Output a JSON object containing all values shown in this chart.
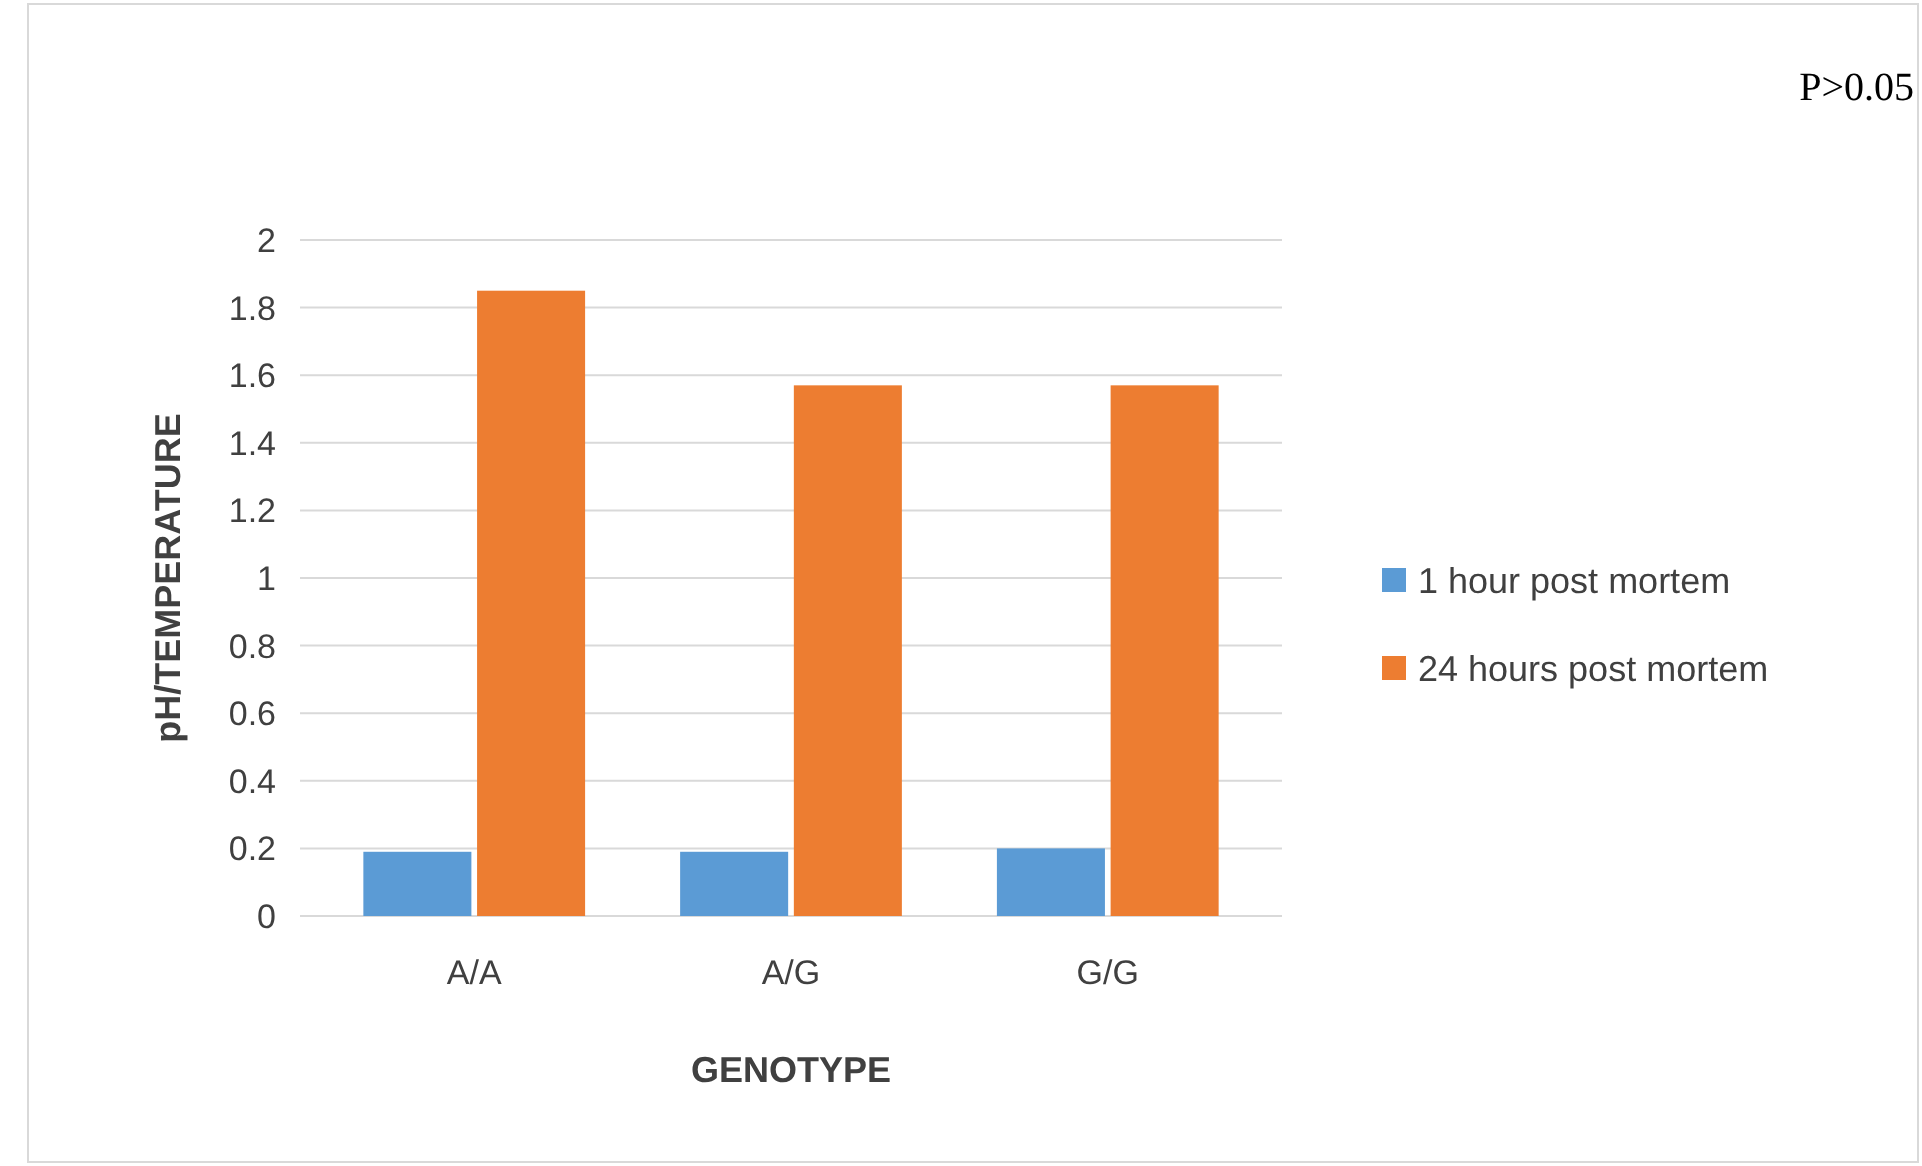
{
  "chart_data": {
    "type": "bar",
    "xlabel": "GENOTYPE",
    "ylabel": "pH/TEMPERATURE",
    "categories": [
      "A/A",
      "A/G",
      "G/G"
    ],
    "series": [
      {
        "name": "1 hour post mortem",
        "color": "#5b9bd5",
        "values": [
          0.19,
          0.19,
          0.2
        ]
      },
      {
        "name": "24 hours  post mortem",
        "color": "#ed7d31",
        "values": [
          1.85,
          1.57,
          1.57
        ]
      }
    ],
    "ylim": [
      0,
      2
    ],
    "yticks": [
      0,
      0.2,
      0.4,
      0.6,
      0.8,
      1,
      1.2,
      1.4,
      1.6,
      1.8,
      2
    ],
    "grid": "y",
    "legend": "right",
    "annotations": [
      "P>0.05"
    ]
  }
}
